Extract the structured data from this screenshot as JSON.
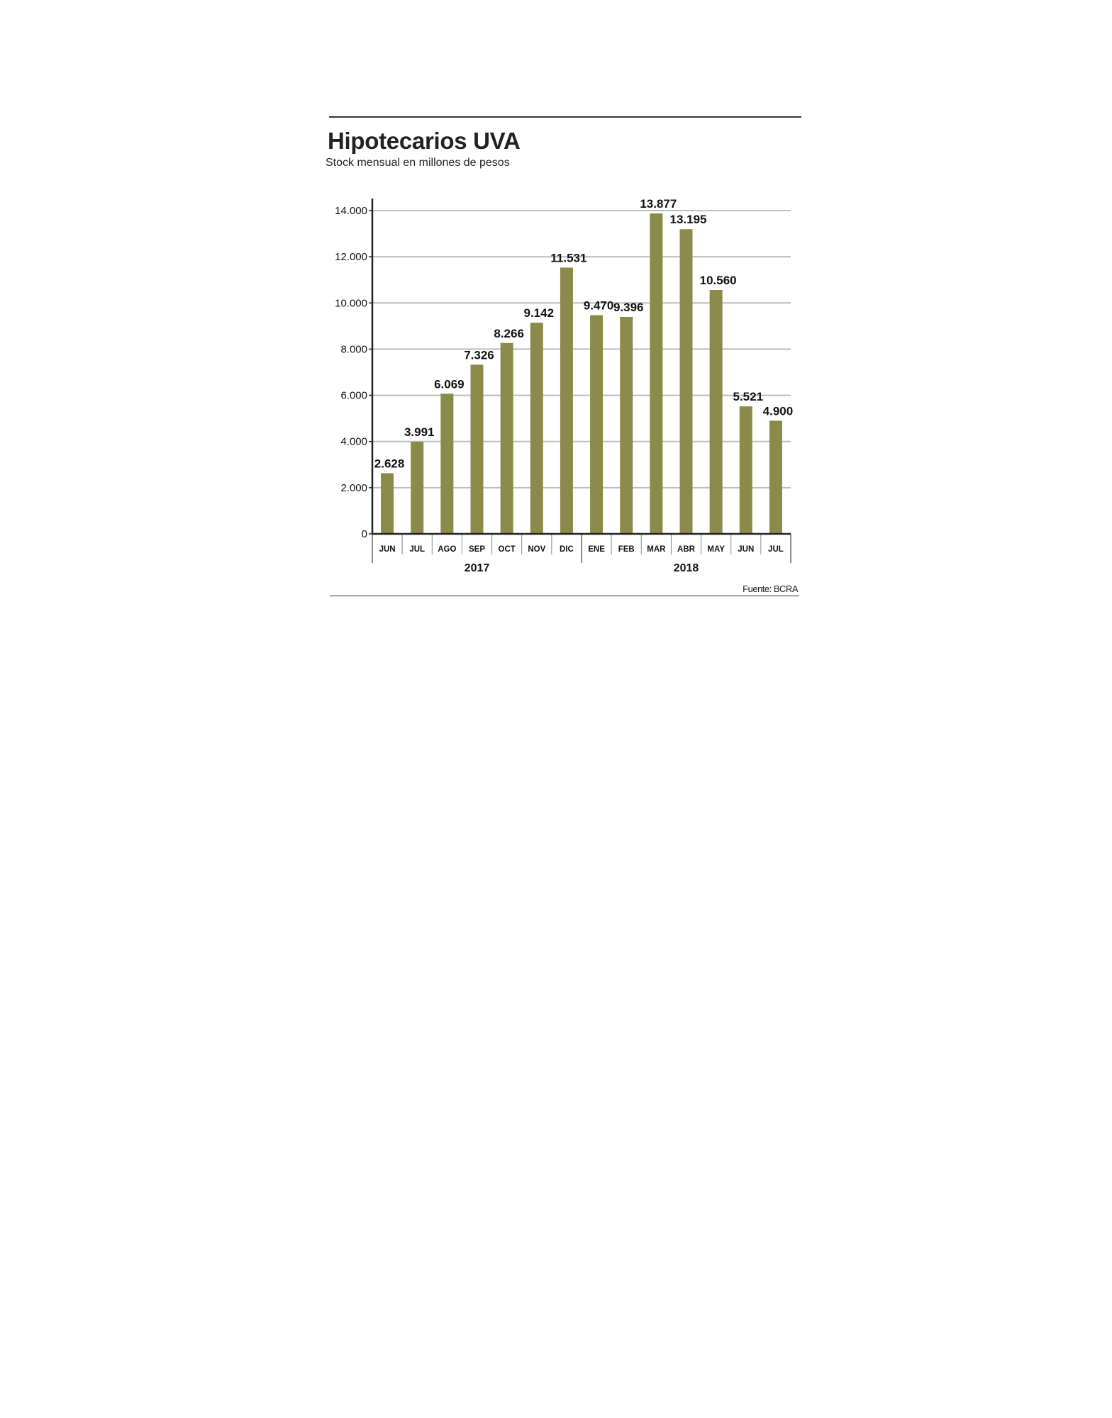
{
  "chart_data": {
    "type": "bar",
    "title": "Hipotecarios UVA",
    "subtitle": "Stock mensual en millones de pesos",
    "source": "Fuente: BCRA",
    "categories": [
      "JUN",
      "JUL",
      "AGO",
      "SEP",
      "OCT",
      "NOV",
      "DIC",
      "ENE",
      "FEB",
      "MAR",
      "ABR",
      "MAY",
      "JUN",
      "JUL"
    ],
    "groups": [
      {
        "label": "2017",
        "count": 7
      },
      {
        "label": "2018",
        "count": 7
      }
    ],
    "values": [
      2628,
      3991,
      6069,
      7326,
      8266,
      9142,
      11531,
      9470,
      9396,
      13877,
      13195,
      10560,
      5521,
      4900
    ],
    "value_labels": [
      "2.628",
      "3.991",
      "6.069",
      "7.326",
      "8.266",
      "9.142",
      "11.531",
      "9.470",
      "9.396",
      "13.877",
      "13.195",
      "10.560",
      "5.521",
      "4.900"
    ],
    "yticks": [
      0,
      2000,
      4000,
      6000,
      8000,
      10000,
      12000,
      14000
    ],
    "ytick_labels": [
      "0",
      "2.000",
      "4.000",
      "6.000",
      "8.000",
      "10.000",
      "12.000",
      "14.000"
    ],
    "ylim": [
      0,
      14500
    ],
    "grid": true,
    "colors": {
      "bar": "#8b8a4b",
      "grid": "#bdbdbd",
      "axis": "#222222"
    }
  }
}
